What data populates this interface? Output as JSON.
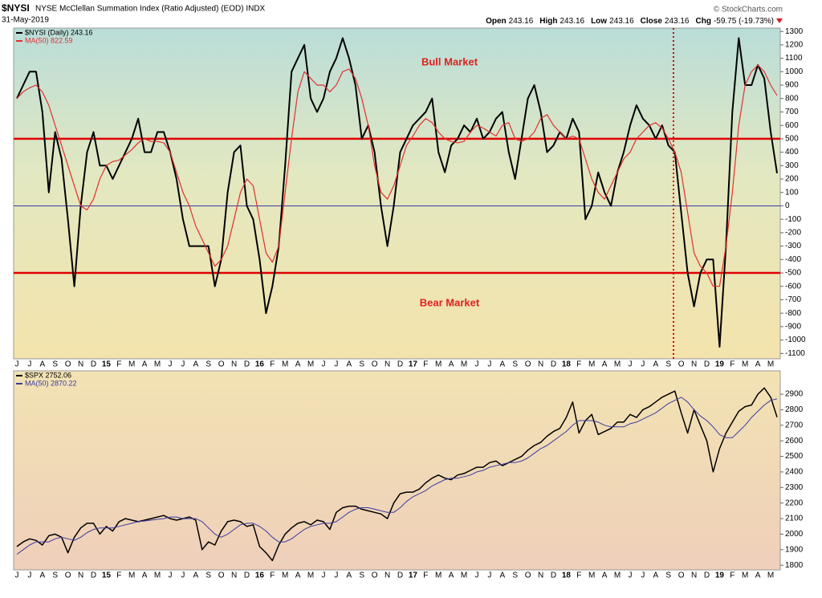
{
  "header": {
    "symbol": "$NYSI",
    "description": "NYSE McClellan Summation Index (Ratio Adjusted) (EOD) INDX",
    "date": "31-May-2019",
    "source": "© StockCharts.com",
    "quote": [
      {
        "label": "Open",
        "value": "243.16"
      },
      {
        "label": "High",
        "value": "243.16"
      },
      {
        "label": "Low",
        "value": "243.16"
      },
      {
        "label": "Close",
        "value": "243.16"
      },
      {
        "label": "Chg",
        "value": "-59.75 (-19.73%)"
      }
    ]
  },
  "chart_data": [
    {
      "type": "line",
      "categories": [
        "J",
        null,
        "J",
        null,
        "A",
        null,
        "S",
        null,
        "O",
        null,
        "N",
        null,
        "D",
        null,
        "15",
        null,
        "F",
        null,
        "M",
        null,
        "A",
        null,
        "M",
        null,
        "J",
        null,
        "J",
        null,
        "A",
        null,
        "S",
        null,
        "O",
        null,
        "N",
        null,
        "D",
        null,
        "16",
        null,
        "F",
        null,
        "M",
        null,
        "A",
        null,
        "M",
        null,
        "J",
        null,
        "J",
        null,
        "A",
        null,
        "S",
        null,
        "O",
        null,
        "N",
        null,
        "D",
        null,
        "17",
        null,
        "F",
        null,
        "M",
        null,
        "A",
        null,
        "M",
        null,
        "J",
        null,
        "J",
        null,
        "A",
        null,
        "S",
        null,
        "O",
        null,
        "N",
        null,
        "D",
        null,
        "18",
        null,
        "F",
        null,
        "M",
        null,
        "A",
        null,
        "M",
        null,
        "J",
        null,
        "J",
        null,
        "A",
        null,
        "S",
        null,
        "O",
        null,
        "N",
        null,
        "D",
        null,
        "19",
        null,
        "F",
        null,
        "M",
        null,
        "A",
        null,
        "M",
        null
      ],
      "series": [
        {
          "name": "$NYSI (Daily) 243.16",
          "color": "#000000",
          "width": 2,
          "values": [
            800,
            900,
            1000,
            1000,
            700,
            100,
            550,
            350,
            -100,
            -600,
            0,
            400,
            550,
            300,
            300,
            200,
            300,
            400,
            500,
            650,
            400,
            400,
            550,
            550,
            400,
            200,
            -100,
            -300,
            -300,
            -300,
            -300,
            -600,
            -400,
            100,
            400,
            450,
            0,
            -100,
            -400,
            -800,
            -600,
            -300,
            300,
            1000,
            1100,
            1200,
            800,
            700,
            800,
            1000,
            1100,
            1250,
            1100,
            900,
            500,
            600,
            400,
            0,
            -300,
            0,
            400,
            500,
            600,
            650,
            700,
            800,
            400,
            250,
            450,
            500,
            600,
            550,
            650,
            500,
            550,
            650,
            700,
            400,
            200,
            500,
            800,
            900,
            700,
            400,
            450,
            550,
            500,
            650,
            550,
            -100,
            0,
            250,
            100,
            0,
            250,
            400,
            600,
            750,
            650,
            600,
            500,
            600,
            450,
            400,
            -50,
            -500,
            -750,
            -500,
            -400,
            -400,
            -1050,
            -300,
            700,
            1250,
            900,
            900,
            1050,
            950,
            550,
            243.16
          ]
        },
        {
          "name": "MA(50) 822.59",
          "color": "#e03030",
          "width": 1.2,
          "values": [
            800,
            850,
            880,
            900,
            850,
            750,
            600,
            450,
            300,
            150,
            0,
            -30,
            50,
            200,
            300,
            330,
            340,
            380,
            420,
            470,
            500,
            480,
            480,
            470,
            400,
            250,
            100,
            0,
            -150,
            -250,
            -350,
            -450,
            -400,
            -300,
            -100,
            100,
            200,
            150,
            -100,
            -350,
            -420,
            -300,
            100,
            500,
            850,
            1000,
            950,
            900,
            900,
            850,
            900,
            1000,
            1020,
            950,
            800,
            600,
            300,
            100,
            50,
            150,
            300,
            450,
            520,
            600,
            650,
            620,
            550,
            500,
            480,
            470,
            480,
            550,
            600,
            580,
            550,
            520,
            600,
            620,
            500,
            480,
            500,
            550,
            650,
            680,
            600,
            550,
            500,
            520,
            500,
            350,
            200,
            100,
            50,
            150,
            250,
            350,
            400,
            500,
            550,
            600,
            620,
            580,
            500,
            400,
            250,
            -50,
            -350,
            -450,
            -500,
            -600,
            -600,
            -300,
            100,
            600,
            900,
            1000,
            1050,
            1000,
            900,
            822.59
          ]
        }
      ],
      "reference_lines": [
        {
          "value": 500,
          "color": "#e00000"
        },
        {
          "value": -500,
          "color": "#e00000"
        },
        {
          "value": 0,
          "color": "#3a3aa0"
        }
      ],
      "annotations": [
        "Bull Market",
        "Bear Market"
      ],
      "ylim": [
        -1140,
        1325
      ],
      "yticks": [
        -1100,
        -1000,
        -900,
        -800,
        -700,
        -600,
        -500,
        -400,
        -300,
        -200,
        -100,
        0,
        100,
        200,
        300,
        400,
        500,
        600,
        700,
        800,
        900,
        1000,
        1100,
        1200,
        1300
      ]
    },
    {
      "type": "line",
      "categories": [
        "J",
        null,
        "J",
        null,
        "A",
        null,
        "S",
        null,
        "O",
        null,
        "N",
        null,
        "D",
        null,
        "15",
        null,
        "F",
        null,
        "M",
        null,
        "A",
        null,
        "M",
        null,
        "J",
        null,
        "J",
        null,
        "A",
        null,
        "S",
        null,
        "O",
        null,
        "N",
        null,
        "D",
        null,
        "16",
        null,
        "F",
        null,
        "M",
        null,
        "A",
        null,
        "M",
        null,
        "J",
        null,
        "J",
        null,
        "A",
        null,
        "S",
        null,
        "O",
        null,
        "N",
        null,
        "D",
        null,
        "17",
        null,
        "F",
        null,
        "M",
        null,
        "A",
        null,
        "M",
        null,
        "J",
        null,
        "J",
        null,
        "A",
        null,
        "S",
        null,
        "O",
        null,
        "N",
        null,
        "D",
        null,
        "18",
        null,
        "F",
        null,
        "M",
        null,
        "A",
        null,
        "M",
        null,
        "J",
        null,
        "J",
        null,
        "A",
        null,
        "S",
        null,
        "O",
        null,
        "N",
        null,
        "D",
        null,
        "19",
        null,
        "F",
        null,
        "M",
        null,
        "A",
        null,
        "M",
        null
      ],
      "series": [
        {
          "name": "$SPX 2752.06",
          "color": "#000000",
          "width": 1.5,
          "values": [
            1920,
            1950,
            1970,
            1960,
            1930,
            1990,
            2000,
            1980,
            1880,
            1980,
            2040,
            2070,
            2070,
            2000,
            2050,
            2020,
            2080,
            2100,
            2090,
            2080,
            2090,
            2100,
            2110,
            2120,
            2100,
            2090,
            2100,
            2110,
            2090,
            1900,
            1950,
            1930,
            2020,
            2080,
            2090,
            2080,
            2050,
            2060,
            1920,
            1880,
            1830,
            1930,
            2000,
            2040,
            2070,
            2080,
            2060,
            2090,
            2080,
            2030,
            2140,
            2170,
            2180,
            2180,
            2160,
            2150,
            2140,
            2130,
            2100,
            2200,
            2260,
            2270,
            2270,
            2290,
            2330,
            2360,
            2380,
            2360,
            2350,
            2380,
            2390,
            2410,
            2430,
            2430,
            2460,
            2470,
            2440,
            2460,
            2480,
            2500,
            2540,
            2570,
            2590,
            2630,
            2660,
            2680,
            2750,
            2850,
            2650,
            2730,
            2770,
            2640,
            2660,
            2680,
            2720,
            2720,
            2770,
            2750,
            2800,
            2820,
            2850,
            2880,
            2900,
            2920,
            2780,
            2650,
            2800,
            2700,
            2600,
            2400,
            2550,
            2650,
            2720,
            2790,
            2820,
            2830,
            2900,
            2940,
            2880,
            2752.06
          ]
        },
        {
          "name": "MA(50) 2870.22",
          "color": "#3a3aa0",
          "width": 1,
          "values": [
            1870,
            1900,
            1930,
            1950,
            1950,
            1950,
            1970,
            1980,
            1970,
            1960,
            1980,
            2010,
            2030,
            2040,
            2040,
            2040,
            2050,
            2060,
            2070,
            2080,
            2085,
            2090,
            2095,
            2100,
            2110,
            2110,
            2100,
            2100,
            2100,
            2080,
            2040,
            2000,
            1980,
            2000,
            2030,
            2060,
            2070,
            2070,
            2050,
            2020,
            1980,
            1950,
            1950,
            1970,
            2000,
            2030,
            2050,
            2060,
            2070,
            2070,
            2080,
            2110,
            2140,
            2160,
            2170,
            2170,
            2160,
            2150,
            2140,
            2140,
            2170,
            2210,
            2240,
            2260,
            2280,
            2310,
            2330,
            2350,
            2360,
            2360,
            2370,
            2380,
            2400,
            2410,
            2430,
            2440,
            2450,
            2460,
            2460,
            2470,
            2490,
            2520,
            2550,
            2570,
            2600,
            2630,
            2660,
            2700,
            2730,
            2730,
            2730,
            2720,
            2700,
            2690,
            2690,
            2690,
            2710,
            2720,
            2740,
            2760,
            2780,
            2810,
            2840,
            2860,
            2880,
            2850,
            2800,
            2760,
            2730,
            2690,
            2640,
            2620,
            2620,
            2660,
            2700,
            2750,
            2790,
            2830,
            2860,
            2870.22
          ]
        }
      ],
      "ylim": [
        1770,
        3050
      ],
      "yticks": [
        1800,
        1900,
        2000,
        2100,
        2200,
        2300,
        2400,
        2500,
        2600,
        2700,
        2800,
        2900
      ]
    }
  ]
}
